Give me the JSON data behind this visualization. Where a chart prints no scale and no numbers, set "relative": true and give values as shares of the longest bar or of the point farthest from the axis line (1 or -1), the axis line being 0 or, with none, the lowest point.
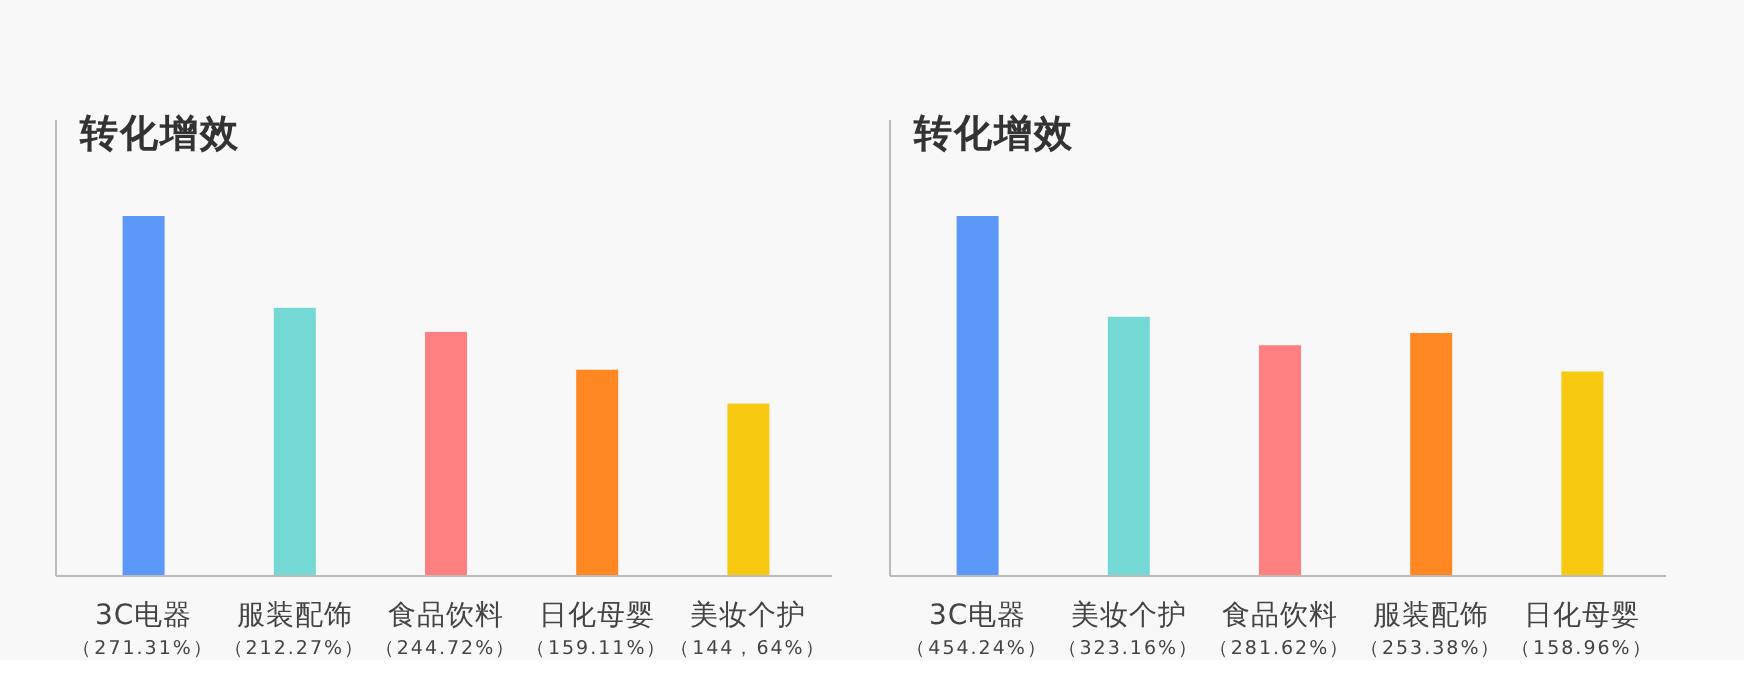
{
  "chart_data": [
    {
      "type": "bar",
      "title": "转化增效",
      "relative": true,
      "categories": [
        "3C电器（271.31%）",
        "服装配饰（212.27%）",
        "食品饮料（244.72%）",
        "日化母婴（159.11%）",
        "美妆个护（144，64%）"
      ],
      "values": [
        1,
        0.745,
        0.678,
        0.573,
        0.479
      ],
      "colors": [
        "#5b98f8",
        "#74d8d4",
        "#ff8080",
        "#ff8822",
        "#f7c910"
      ]
    },
    {
      "type": "bar",
      "title": "转化增效",
      "relative": true,
      "categories": [
        "3C电器（454.24%）",
        "美妆个护（323.16%）",
        "食品饮料（281.62%）",
        "服装配饰（253.38%）",
        "日化母婴（158.96%）"
      ],
      "values": [
        1,
        0.72,
        0.641,
        0.675,
        0.568
      ],
      "colors": [
        "#5b98f8",
        "#74d8d4",
        "#ff8080",
        "#ff8822",
        "#f7c910"
      ]
    }
  ]
}
